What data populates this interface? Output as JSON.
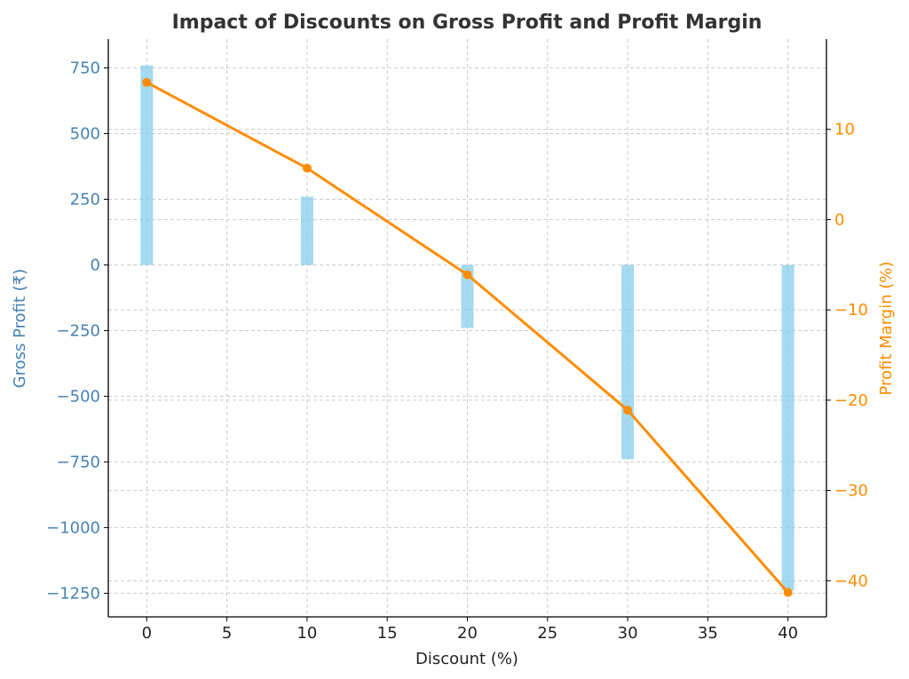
{
  "chart_data": {
    "type": "bar+line",
    "title": "Impact of Discounts on Gross Profit and Profit Margin",
    "xlabel": "Discount (%)",
    "ylabel_left": "Gross Profit (₹)",
    "ylabel_right": "Profit Margin (%)",
    "x_ticks": [
      0,
      5,
      10,
      15,
      20,
      25,
      30,
      35,
      40
    ],
    "x_tick_labels": [
      "0",
      "5",
      "10",
      "15",
      "20",
      "25",
      "30",
      "35",
      "40"
    ],
    "xlim": [
      -2.4,
      42.4
    ],
    "y_left_ticks": [
      750,
      500,
      250,
      0,
      -250,
      -500,
      -750,
      -1000,
      -1250
    ],
    "y_left_tick_labels": [
      "750",
      "500",
      "250",
      "0",
      "−250",
      "−500",
      "−750",
      "−1000",
      "−1250"
    ],
    "ylim_left": [
      -1340,
      860
    ],
    "y_right_ticks": [
      10,
      0,
      -10,
      -20,
      -30,
      -40
    ],
    "y_right_tick_labels": [
      "10",
      "0",
      "−10",
      "−20",
      "−30",
      "−40"
    ],
    "ylim_right": [
      -44,
      20
    ],
    "grid": true,
    "series": [
      {
        "name": "Gross Profit",
        "type": "bar",
        "axis": "left",
        "color": "#87ceeb",
        "x": [
          0,
          10,
          20,
          30,
          40
        ],
        "values": [
          760,
          260,
          -240,
          -740,
          -1240
        ]
      },
      {
        "name": "Profit Margin",
        "type": "line",
        "axis": "right",
        "color": "#ff8c00",
        "x": [
          0,
          10,
          20,
          30,
          40
        ],
        "values": [
          15.2,
          5.7,
          -6.1,
          -21.1,
          -41.3
        ]
      }
    ]
  }
}
